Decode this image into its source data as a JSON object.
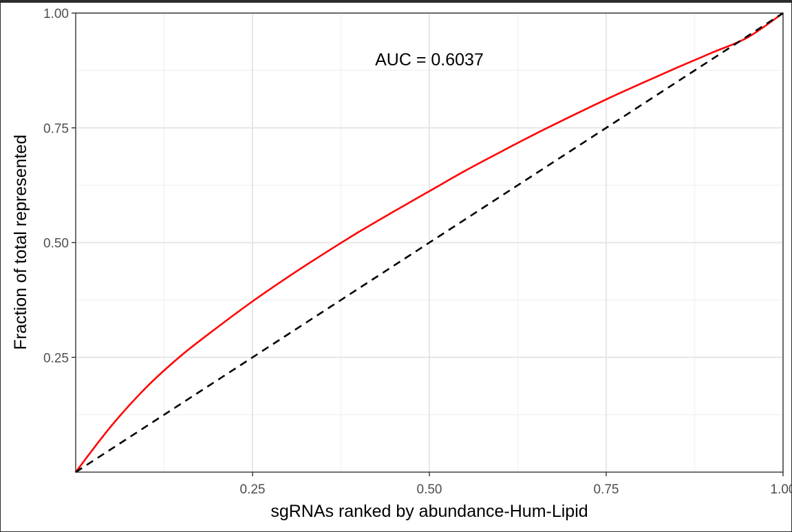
{
  "chart_data": {
    "type": "line",
    "xlabel": "sgRNAs ranked by abundance-Hum-Lipid",
    "ylabel": "Fraction of total represented",
    "xlim": [
      0,
      1
    ],
    "ylim": [
      0,
      1
    ],
    "x_ticks": [
      0.25,
      0.5,
      0.75,
      1.0
    ],
    "x_tick_labels": [
      "0.25",
      "0.50",
      "0.75",
      "1.00"
    ],
    "y_ticks": [
      0.25,
      0.5,
      0.75,
      1.0
    ],
    "y_tick_labels": [
      "0.25",
      "0.50",
      "0.75",
      "1.00"
    ],
    "grid": true,
    "annotation": "AUC = 0.6037",
    "series": [
      {
        "color": "#ff0000",
        "style": "solid",
        "x": [
          0,
          0.05,
          0.1,
          0.15,
          0.2,
          0.25,
          0.3,
          0.35,
          0.4,
          0.45,
          0.5,
          0.55,
          0.6,
          0.65,
          0.7,
          0.75,
          0.8,
          0.85,
          0.9,
          0.95,
          1.0
        ],
        "y": [
          0,
          0.1,
          0.185,
          0.255,
          0.315,
          0.372,
          0.425,
          0.475,
          0.523,
          0.568,
          0.612,
          0.656,
          0.697,
          0.737,
          0.775,
          0.812,
          0.847,
          0.881,
          0.914,
          0.947,
          1.0
        ]
      },
      {
        "color": "#000000",
        "style": "dashed",
        "x": [
          0,
          1
        ],
        "y": [
          0,
          1
        ]
      }
    ]
  }
}
